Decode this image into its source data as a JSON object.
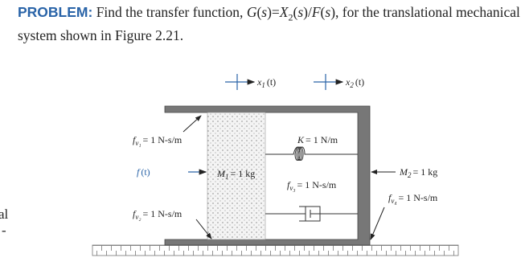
{
  "header": {
    "label": "PROBLEM:",
    "parts": [
      "Find the transfer function, ",
      "G",
      "(",
      "s",
      ")=",
      "X",
      "2",
      "(",
      "s",
      ")/",
      "F",
      "(",
      "s",
      "), for the translational mechanical system shown in Figure 2.21."
    ]
  },
  "figure": {
    "labels": {
      "x1": {
        "main": "x",
        "sub": "1",
        "text": "(t)"
      },
      "x2": {
        "main": "x",
        "sub": "2",
        "text": "(t)"
      },
      "fv1": {
        "main": "f",
        "sub": "v₁",
        "text": "= 1 N-s/m"
      },
      "ft": {
        "main": "f",
        "sub": "",
        "text": "(t)"
      },
      "m1": {
        "main": "M",
        "sub": "1",
        "text": "= 1 kg"
      },
      "k": {
        "main": "K",
        "sub": "",
        "text": "= 1 N/m"
      },
      "fv3": {
        "main": "f",
        "sub": "v₃",
        "text": "= 1 N-s/m"
      },
      "fv2": {
        "main": "f",
        "sub": "v₂",
        "text": "= 1 N-s/m"
      },
      "m2": {
        "main": "M",
        "sub": "2",
        "text": "= 1 kg"
      },
      "fv4": {
        "main": "f",
        "sub": "v₄",
        "text": "= 1 N-s/m"
      }
    }
  },
  "margin_fragment": [
    "al",
    "-"
  ]
}
